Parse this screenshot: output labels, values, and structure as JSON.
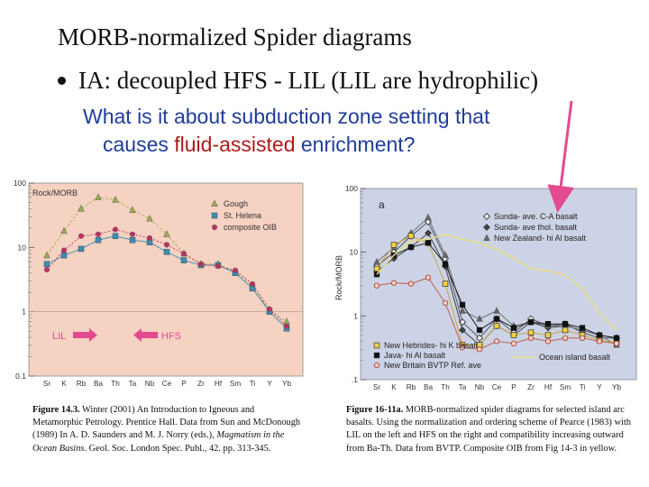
{
  "slide": {
    "title": "MORB-normalized Spider diagrams",
    "bullet": "IA: decoupled HFS - LIL (LIL are hydrophilic)",
    "question": {
      "line1": "What is it about subduction zone setting that",
      "line2_a": "causes ",
      "line2_highlight": "fluid-assisted",
      "line2_b": " enrichment?"
    }
  },
  "captions": {
    "left": {
      "label": "Figure 14.3.",
      "pre": " Winter (2001) An Introduction to Igneous and Metamorphic Petrology. Prentice Hall. Data from Sun and McDonough (1989) In A. D. Saunders and M. J. Norry (eds.), ",
      "italic": "Magmatism in the Ocean Basins",
      "post": ". Geol. Soc. London Spec. Publ., 42. pp. 313-345."
    },
    "right": {
      "label": "Figure 16-11a.",
      "text": " MORB-normalized spider diagrams for selected island arc basalts. Using the normalization and ordering scheme of Pearce (1983) with LIL on the left and HFS on the right and compatibility increasing outward from Ba-Th. Data from BVTP. Composite OIB from Fig 14-3 in yellow."
    }
  },
  "colors": {
    "left_bg": "#f6d2c2",
    "right_bg": "#ccd3e6",
    "arrow": "#e44a8f",
    "oib_yellow": "#e9dc86"
  },
  "chart_data": [
    {
      "type": "line",
      "title": "",
      "ylabel": "Rock/MORB",
      "yscale": "log",
      "ylim": [
        0.1,
        100
      ],
      "yticks": [
        "100",
        "10",
        "1",
        "0.1"
      ],
      "categories": [
        "Sr",
        "K",
        "Rb",
        "Ba",
        "Th",
        "Ta",
        "Nb",
        "Ce",
        "P",
        "Zr",
        "Hf",
        "Sm",
        "Ti",
        "Y",
        "Yb"
      ],
      "series": [
        {
          "name": "Gough",
          "color": "#9bb04a",
          "marker": "triangle",
          "values": [
            7.5,
            18,
            40,
            60,
            55,
            38,
            28,
            16,
            8,
            5.5,
            5.5,
            4.2,
            2.5,
            1.05,
            0.7
          ]
        },
        {
          "name": "St. Helena",
          "color": "#3b8fb5",
          "marker": "square",
          "values": [
            5.5,
            7.5,
            9.5,
            13,
            15,
            13,
            12,
            8.5,
            6.3,
            5.3,
            5.3,
            4.0,
            2.3,
            1.0,
            0.55
          ]
        },
        {
          "name": "composite OIB",
          "color": "#c03060",
          "marker": "circle",
          "values": [
            4.5,
            9,
            15,
            16,
            19,
            16,
            14,
            11,
            8,
            5.5,
            5.1,
            4.4,
            2.7,
            1.1,
            0.6
          ]
        }
      ],
      "annotations": [
        "LIL",
        "HFS"
      ]
    },
    {
      "type": "line",
      "title": "a",
      "ylabel": "Rock/MORB",
      "yscale": "log",
      "ylim": [
        0.1,
        100
      ],
      "yticks": [
        "100",
        "10",
        "1",
        ".1"
      ],
      "categories": [
        "Sr",
        "K",
        "Rb",
        "Ba",
        "Th",
        "Ta",
        "Nb",
        "Ce",
        "P",
        "Zr",
        "Hf",
        "Sm",
        "Ti",
        "Y",
        "Yb"
      ],
      "series": [
        {
          "name": "Sunda- ave. C-A basalt",
          "color": "#4a4a4a",
          "marker": "diamond-open",
          "values": [
            6,
            10,
            18,
            30,
            8,
            0.8,
            0.45,
            0.9,
            0.55,
            0.9,
            0.7,
            0.75,
            0.55,
            0.45,
            0.45
          ]
        },
        {
          "name": "Sunda- ave thol. basalt",
          "color": "#333333",
          "marker": "diamond-filled",
          "values": [
            5,
            8,
            12,
            20,
            6,
            0.6,
            0.35,
            0.7,
            0.5,
            0.8,
            0.65,
            0.7,
            0.6,
            0.5,
            0.45
          ]
        },
        {
          "name": "New Zealand- hi Al basalt",
          "color": "#666666",
          "marker": "triangle",
          "values": [
            7,
            12,
            20,
            35,
            9,
            1.2,
            0.9,
            1.2,
            0.7,
            0.8,
            0.7,
            0.7,
            0.6,
            0.5,
            0.35
          ]
        },
        {
          "name": "New Hebrides- hi K basalt",
          "color": "#c9a430",
          "marker": "square-yellow",
          "values": [
            5.5,
            13,
            18,
            14,
            3.2,
            0.35,
            0.35,
            0.7,
            0.5,
            0.55,
            0.5,
            0.6,
            0.5,
            0.42,
            0.38
          ]
        },
        {
          "name": "Java- hi Al basalt",
          "color": "#111111",
          "marker": "square-black",
          "values": [
            4.5,
            9,
            12,
            14,
            6.5,
            1.5,
            0.6,
            0.9,
            0.65,
            0.8,
            0.75,
            0.75,
            0.65,
            0.5,
            0.45
          ]
        },
        {
          "name": "New Britain BVTP Ref. ave",
          "color": "#c0503a",
          "marker": "circle-open",
          "values": [
            3,
            3.3,
            3.2,
            4,
            1.6,
            0.32,
            0.3,
            0.4,
            0.37,
            0.45,
            0.4,
            0.45,
            0.45,
            0.4,
            0.37
          ]
        },
        {
          "name": "Ocean island basalt",
          "color": "#e9dc86",
          "marker": "none",
          "values": [
            4.5,
            9,
            15,
            16,
            19,
            16,
            14,
            11,
            8,
            5.5,
            5.1,
            4.4,
            2.7,
            1.1,
            0.6
          ]
        }
      ]
    }
  ]
}
